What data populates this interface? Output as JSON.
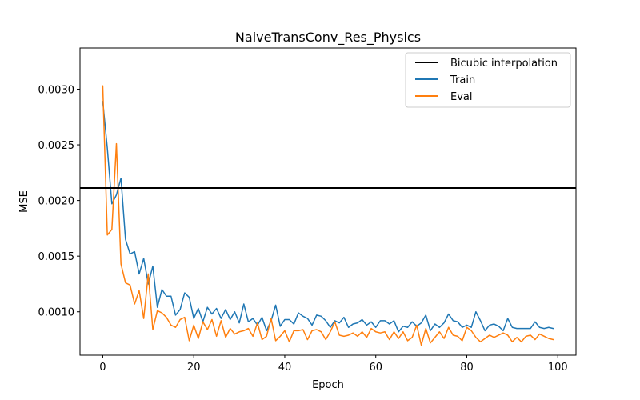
{
  "chart_data": {
    "type": "line",
    "title": "NaiveTransConv_Res_Physics",
    "xlabel": "Epoch",
    "ylabel": "MSE",
    "xlim": [
      -5,
      104
    ],
    "ylim": [
      0.00061,
      0.00337
    ],
    "xticks": [
      0,
      20,
      40,
      60,
      80,
      100
    ],
    "yticks": [
      0.001,
      0.0015,
      0.002,
      0.0025,
      0.003
    ],
    "ytick_labels": [
      "0.0010",
      "0.0015",
      "0.0020",
      "0.0025",
      "0.0030"
    ],
    "grid": false,
    "legend_position": "top-right",
    "hline": {
      "name": "Bicubic interpolation",
      "value": 0.002112,
      "color": "#000000"
    },
    "series": [
      {
        "name": "Train",
        "color": "#1f77b4",
        "values": [
          0.00289,
          0.00247,
          0.00197,
          0.00205,
          0.0022,
          0.00165,
          0.00152,
          0.00154,
          0.00134,
          0.00148,
          0.00125,
          0.00141,
          0.00104,
          0.0012,
          0.00114,
          0.00114,
          0.00097,
          0.00102,
          0.00117,
          0.00113,
          0.00094,
          0.00103,
          0.00091,
          0.00104,
          0.00098,
          0.00103,
          0.00094,
          0.00102,
          0.00093,
          0.001,
          0.0009,
          0.00107,
          0.00091,
          0.00094,
          0.00088,
          0.00095,
          0.00083,
          0.00092,
          0.00106,
          0.00087,
          0.00093,
          0.00093,
          0.00089,
          0.00099,
          0.00096,
          0.00094,
          0.00088,
          0.00097,
          0.00096,
          0.00092,
          0.00086,
          0.00092,
          0.0009,
          0.00095,
          0.00086,
          0.00089,
          0.0009,
          0.00093,
          0.00088,
          0.00091,
          0.00086,
          0.00092,
          0.00092,
          0.00089,
          0.00092,
          0.00082,
          0.00087,
          0.00086,
          0.00091,
          0.00087,
          0.0009,
          0.00097,
          0.00083,
          0.00089,
          0.00086,
          0.0009,
          0.00098,
          0.00092,
          0.00091,
          0.00086,
          0.00088,
          0.00086,
          0.001,
          0.00092,
          0.00083,
          0.00088,
          0.00089,
          0.00087,
          0.00083,
          0.00094,
          0.00086,
          0.00085,
          0.00085,
          0.00085,
          0.00085,
          0.00091,
          0.00086,
          0.00085,
          0.00086,
          0.00085
        ]
      },
      {
        "name": "Eval",
        "color": "#ff7f0e",
        "values": [
          0.00303,
          0.00169,
          0.00174,
          0.00251,
          0.00143,
          0.00126,
          0.00124,
          0.00107,
          0.00119,
          0.00094,
          0.00134,
          0.00084,
          0.00101,
          0.00099,
          0.00095,
          0.00088,
          0.00086,
          0.00093,
          0.00095,
          0.00074,
          0.00088,
          0.00076,
          0.00091,
          0.00084,
          0.00093,
          0.00078,
          0.00092,
          0.00077,
          0.00085,
          0.0008,
          0.00082,
          0.00083,
          0.00085,
          0.00078,
          0.0009,
          0.00075,
          0.00078,
          0.00094,
          0.00074,
          0.00078,
          0.00083,
          0.00073,
          0.00083,
          0.00083,
          0.00084,
          0.00075,
          0.00083,
          0.00084,
          0.00082,
          0.00075,
          0.00082,
          0.00091,
          0.00079,
          0.00078,
          0.00079,
          0.00081,
          0.00078,
          0.00082,
          0.00077,
          0.00085,
          0.00082,
          0.00081,
          0.00082,
          0.00075,
          0.00082,
          0.00076,
          0.00082,
          0.00074,
          0.00077,
          0.00088,
          0.0007,
          0.00085,
          0.00072,
          0.00077,
          0.00082,
          0.00076,
          0.00086,
          0.00079,
          0.00078,
          0.00074,
          0.00086,
          0.00083,
          0.00077,
          0.00073,
          0.00076,
          0.00079,
          0.00077,
          0.00079,
          0.00081,
          0.00079,
          0.00073,
          0.00077,
          0.00073,
          0.00078,
          0.00079,
          0.00075,
          0.0008,
          0.00078,
          0.00076,
          0.00075
        ]
      }
    ]
  }
}
